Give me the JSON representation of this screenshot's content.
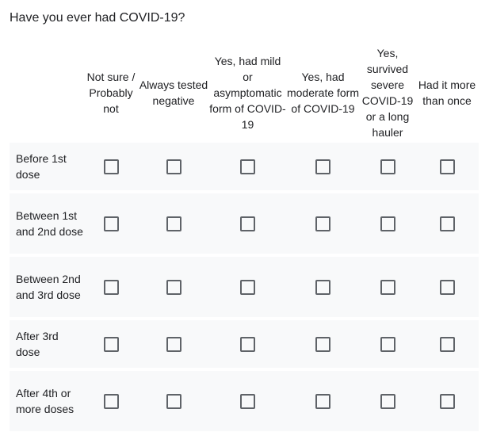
{
  "question": "Have you ever had COVID-19?",
  "columns": [
    "Not sure / Probably not",
    "Always tested negative",
    "Yes, had mild or asymptomatic form of COVID-19",
    "Yes, had moderate form of COVID-19",
    "Yes, survived severe COVID-19 or a long hauler",
    "Had it more than once"
  ],
  "rows": [
    "Before 1st dose",
    "Between 1st and 2nd dose",
    "Between 2nd and 3rd dose",
    "After 3rd dose",
    "After 4th or more doses"
  ],
  "checkbox_border_color": "#5f6368",
  "row_background": "#f8f9fa"
}
